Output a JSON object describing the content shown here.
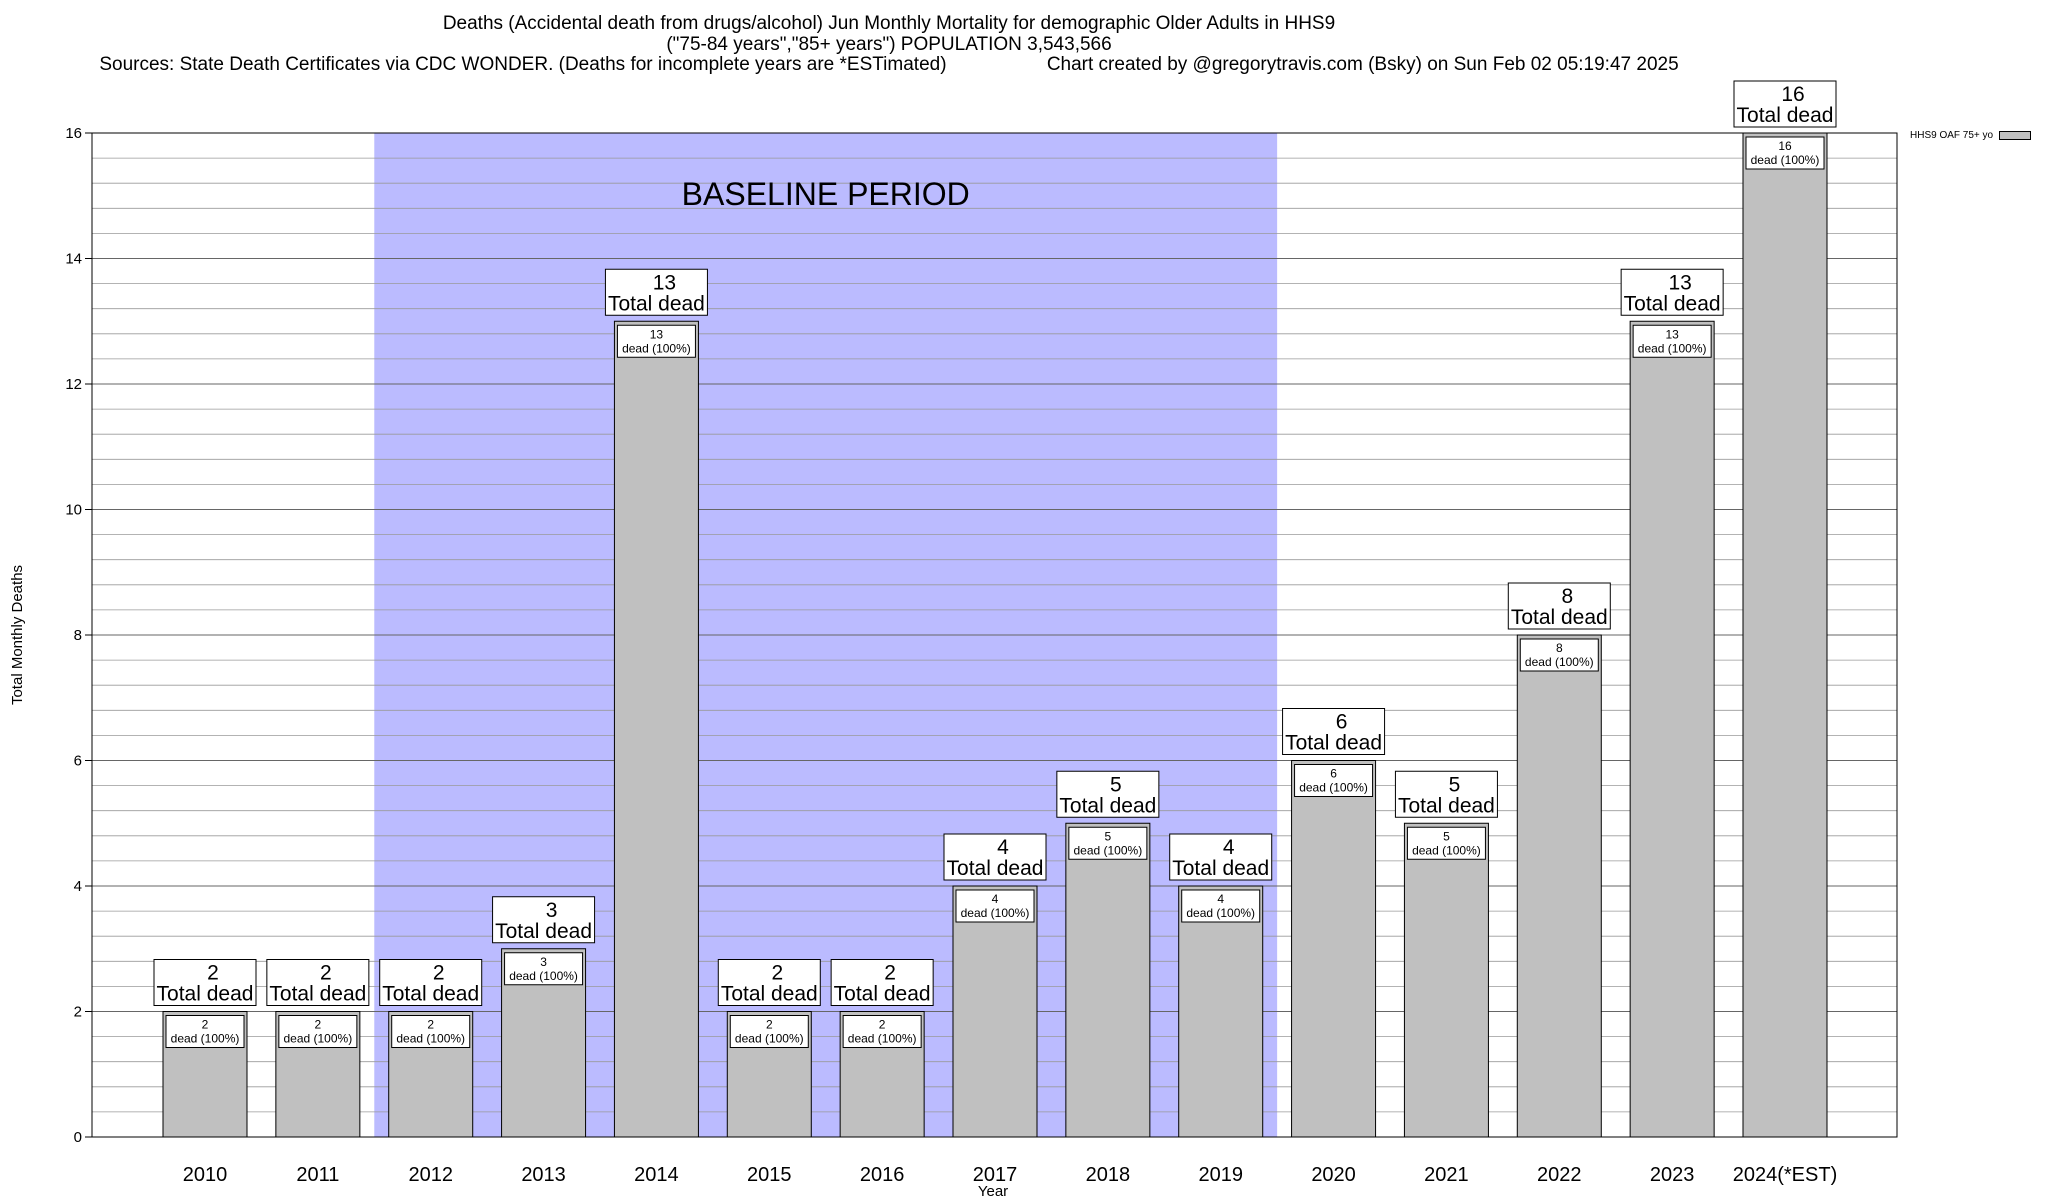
{
  "title": {
    "line1": "Deaths (Accidental death from drugs/alcohol) Jun Monthly Mortality for demographic Older Adults in HHS9",
    "line2": "(\"75-84 years\",\"85+ years\") POPULATION 3,543,566",
    "line3_left": "Sources: State Death Certificates via CDC WONDER. (Deaths for incomplete years are *ESTimated)",
    "line3_right": "Chart created by @gregorytravis.com (Bsky) on Sun Feb 02 05:19:47 2025"
  },
  "chart_data": {
    "type": "bar",
    "categories": [
      "2010",
      "2011",
      "2012",
      "2013",
      "2014",
      "2015",
      "2016",
      "2017",
      "2018",
      "2019",
      "2020",
      "2021",
      "2022",
      "2023",
      "2024(*EST)"
    ],
    "series": [
      {
        "name": "HHS9 OAF 75+ yo",
        "values": [
          2,
          2,
          2,
          3,
          13,
          2,
          2,
          4,
          5,
          4,
          6,
          5,
          8,
          13,
          16
        ],
        "color": "#c0c0c0"
      }
    ],
    "xlabel": "Year",
    "ylabel": "Total Monthly Deaths",
    "ylim": [
      0,
      16
    ],
    "yticks": [
      0,
      2,
      4,
      6,
      8,
      10,
      12,
      14,
      16
    ],
    "minor_step": 0.4,
    "grid": true,
    "legend_position": "top-right",
    "total_label": "Total dead",
    "inner_label": "dead (100%)",
    "baseline": {
      "label": "BASELINE PERIOD",
      "start": "2012",
      "end": "2019",
      "color": "#bbbbff"
    }
  }
}
